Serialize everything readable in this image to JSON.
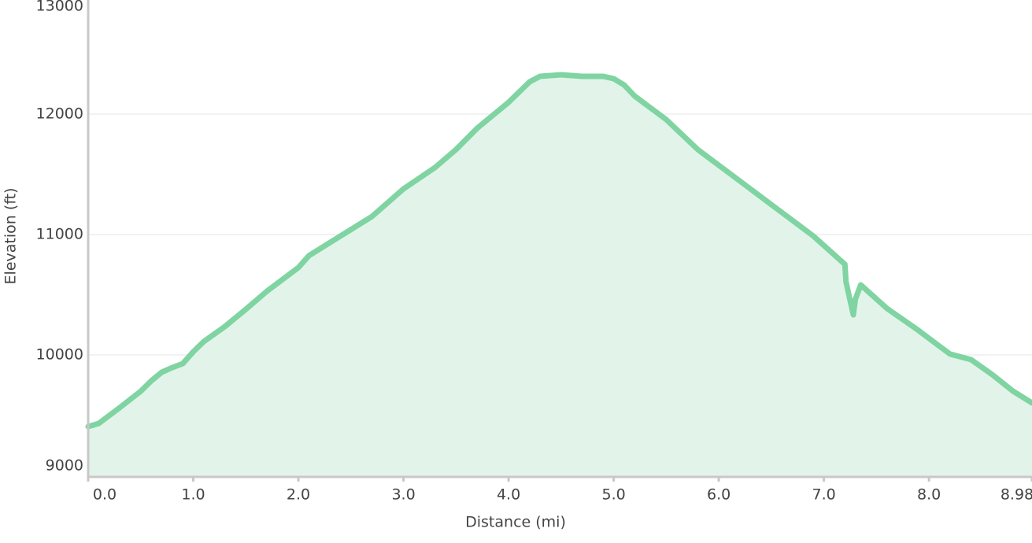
{
  "chart_data": {
    "type": "area",
    "x_label": "Distance   (mi)",
    "y_label": "Elevation (ft)",
    "x": [
      0,
      0.1,
      0.3,
      0.5,
      0.6,
      0.7,
      0.8,
      0.9,
      1.0,
      1.1,
      1.3,
      1.5,
      1.7,
      2.0,
      2.1,
      2.4,
      2.7,
      3.0,
      3.3,
      3.5,
      3.7,
      4.0,
      4.1,
      4.2,
      4.3,
      4.5,
      4.7,
      4.9,
      5.0,
      5.1,
      5.2,
      5.5,
      5.8,
      6.0,
      6.3,
      6.6,
      6.9,
      7.2,
      7.21,
      7.28,
      7.3,
      7.35,
      7.6,
      7.9,
      8.1,
      8.2,
      8.4,
      8.6,
      8.8,
      8.98
    ],
    "series": [
      {
        "color": "#7fd4a2",
        "fill": "#e2f4ea",
        "values": [
          9405,
          9431,
          9562,
          9699,
          9784,
          9856,
          9895,
          9928,
          10026,
          10111,
          10235,
          10379,
          10529,
          10725,
          10824,
          10987,
          11150,
          11379,
          11556,
          11706,
          11882,
          12098,
          12183,
          12268,
          12314,
          12327,
          12314,
          12314,
          12294,
          12242,
          12150,
          11954,
          11706,
          11575,
          11379,
          11183,
          10987,
          10752,
          10608,
          10333,
          10464,
          10582,
          10386,
          10203,
          10072,
          10007,
          9961,
          9837,
          9699,
          9601
        ]
      }
    ],
    "xlim": [
      0,
      8.98
    ],
    "xticks": [
      {
        "value": 0,
        "label": "0.0"
      },
      {
        "value": 1,
        "label": "1.0"
      },
      {
        "value": 2,
        "label": "2.0"
      },
      {
        "value": 3,
        "label": "3.0"
      },
      {
        "value": 4,
        "label": "4.0"
      },
      {
        "value": 5,
        "label": "5.0"
      },
      {
        "value": 6,
        "label": "6.0"
      },
      {
        "value": 7,
        "label": "7.0"
      },
      {
        "value": 8,
        "label": "8.0"
      },
      8.98
    ],
    "ylim": [
      9000,
      13000
    ],
    "yticks": [
      9000,
      10000,
      11000,
      12000,
      13000
    ],
    "grid": true
  }
}
